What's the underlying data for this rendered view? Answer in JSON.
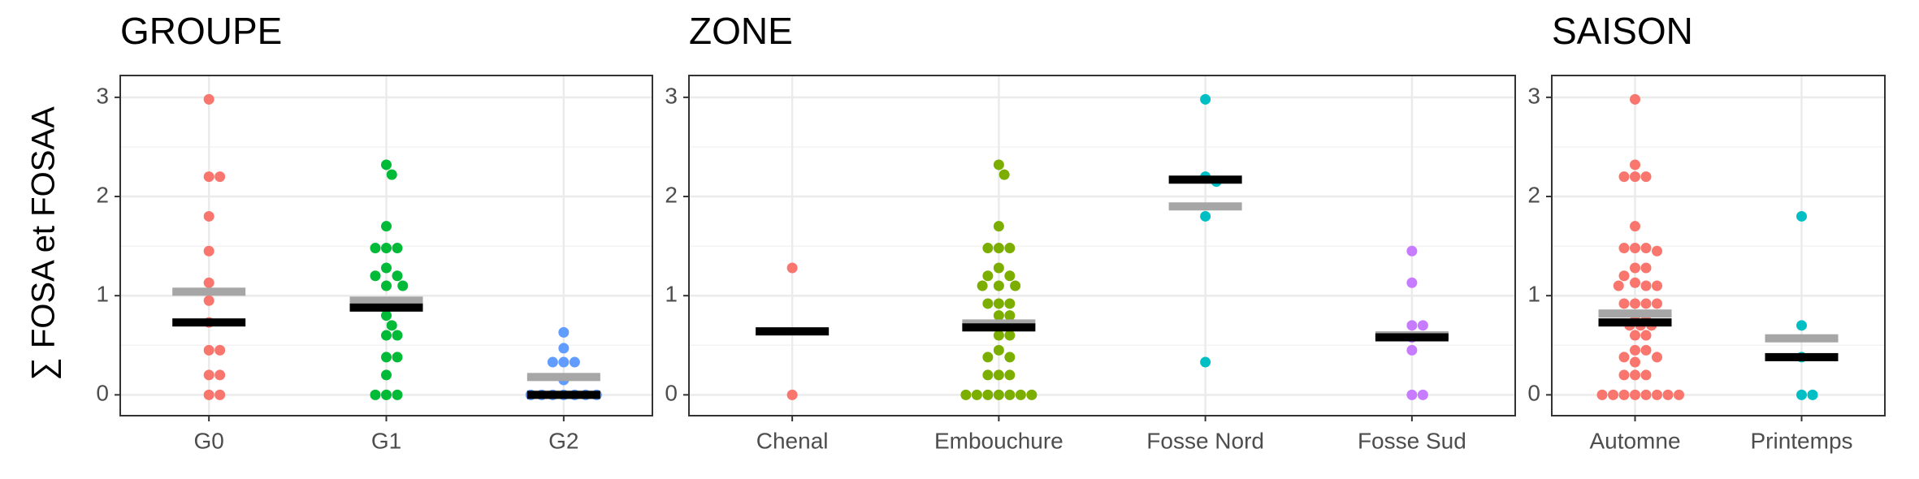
{
  "chart_data": [
    {
      "type": "strip",
      "title": "GROUPE",
      "y_label": "∑ FOSA et FOSAA",
      "categories": [
        "G0",
        "G1",
        "G2"
      ],
      "colors": [
        "#F8766D",
        "#00BA38",
        "#619CFF"
      ],
      "values": [
        [
          2.98,
          2.2,
          2.2,
          1.8,
          1.45,
          1.13,
          0.95,
          0.73,
          0.45,
          0.45,
          0.2,
          0.2,
          0,
          0
        ],
        [
          2.32,
          2.22,
          1.7,
          1.48,
          1.48,
          1.48,
          1.28,
          1.2,
          1.2,
          1.1,
          1.1,
          0.92,
          0.92,
          0.8,
          0.7,
          0.6,
          0.6,
          0.38,
          0.38,
          0.2,
          0,
          0,
          0
        ],
        [
          0.63,
          0.47,
          0.33,
          0.33,
          0.33,
          0.15,
          0,
          0,
          0,
          0,
          0,
          0,
          0
        ]
      ],
      "mean": [
        1.04,
        0.95,
        0.18
      ],
      "median": [
        0.73,
        0.88,
        0
      ],
      "ylim": [
        -0.21,
        3.22
      ],
      "yticks": [
        0,
        1,
        2,
        3
      ],
      "minor_yticks": [
        0.5,
        1.5,
        2.5
      ],
      "grid": true
    },
    {
      "type": "strip",
      "title": "ZONE",
      "categories": [
        "Chenal",
        "Embouchure",
        "Fosse Nord",
        "Fosse Sud"
      ],
      "colors": [
        "#F8766D",
        "#7CAE00",
        "#00BFC4",
        "#C77CFF"
      ],
      "values": [
        [
          1.28,
          0
        ],
        [
          2.32,
          2.22,
          1.7,
          1.48,
          1.48,
          1.48,
          1.28,
          1.2,
          1.2,
          1.1,
          1.1,
          1.1,
          0.92,
          0.92,
          0.92,
          0.8,
          0.8,
          0.7,
          0.7,
          0.7,
          0.6,
          0.6,
          0.45,
          0.38,
          0.38,
          0.2,
          0.2,
          0.2,
          0,
          0,
          0,
          0,
          0,
          0,
          0
        ],
        [
          2.98,
          2.2,
          2.15,
          1.8,
          0.33
        ],
        [
          1.45,
          1.13,
          0.7,
          0.7,
          0.58,
          0.45,
          0,
          0
        ]
      ],
      "mean": [
        0.64,
        0.72,
        1.9,
        0.6
      ],
      "median": [
        0.64,
        0.68,
        2.17,
        0.58
      ],
      "ylim": [
        -0.21,
        3.22
      ],
      "yticks": [
        0,
        1,
        2,
        3
      ],
      "minor_yticks": [
        0.5,
        1.5,
        2.5
      ],
      "grid": true
    },
    {
      "type": "strip",
      "title": "SAISON",
      "categories": [
        "Automne",
        "Printemps"
      ],
      "colors": [
        "#F8766D",
        "#00BFC4"
      ],
      "values": [
        [
          2.98,
          2.32,
          2.2,
          2.2,
          2.2,
          1.7,
          1.48,
          1.48,
          1.48,
          1.45,
          1.28,
          1.28,
          1.2,
          1.13,
          1.1,
          1.1,
          1.1,
          0.92,
          0.92,
          0.92,
          0.92,
          0.8,
          0.8,
          0.7,
          0.7,
          0.7,
          0.6,
          0.6,
          0.45,
          0.45,
          0.38,
          0.38,
          0.33,
          0.2,
          0.2,
          0.2,
          0,
          0,
          0,
          0,
          0,
          0,
          0,
          0
        ],
        [
          1.8,
          0.7,
          0.38,
          0,
          0
        ]
      ],
      "mean": [
        0.82,
        0.57
      ],
      "median": [
        0.73,
        0.38
      ],
      "ylim": [
        -0.21,
        3.22
      ],
      "yticks": [
        0,
        1,
        2,
        3
      ],
      "minor_yticks": [
        0.5,
        1.5,
        2.5
      ],
      "grid": true
    }
  ]
}
